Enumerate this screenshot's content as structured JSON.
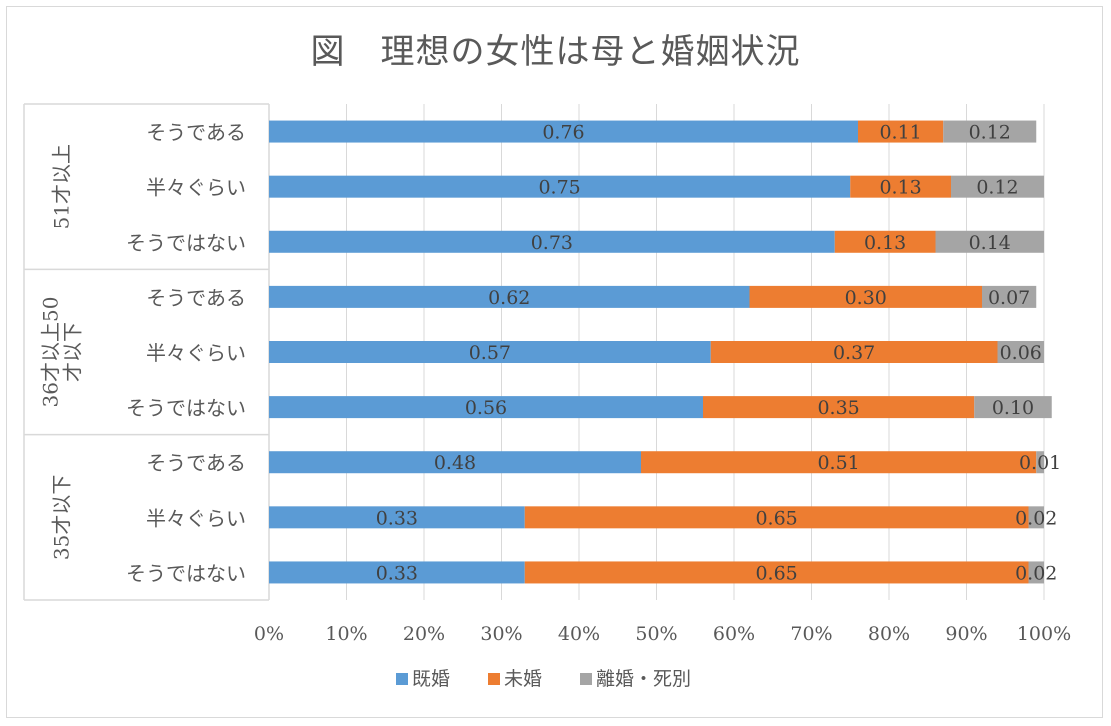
{
  "chart_data": {
    "type": "bar",
    "orientation": "horizontal",
    "stacked": "percent",
    "title": "図　理想の女性は母と婚姻状況",
    "xlim": [
      0,
      1
    ],
    "x_ticks": [
      "0%",
      "10%",
      "20%",
      "30%",
      "40%",
      "50%",
      "60%",
      "70%",
      "80%",
      "90%",
      "100%"
    ],
    "groups": [
      {
        "label": "51才以上",
        "categories": [
          "そうである",
          "半々ぐらい",
          "そうではない"
        ]
      },
      {
        "label": "36才以上50才以下",
        "categories": [
          "そうである",
          "半々ぐらい",
          "そうではない"
        ]
      },
      {
        "label": "35才以下",
        "categories": [
          "そうである",
          "半々ぐらい",
          "そうではない"
        ]
      }
    ],
    "series": [
      {
        "name": "既婚",
        "color": "#5b9bd5",
        "values": [
          0.76,
          0.75,
          0.73,
          0.62,
          0.57,
          0.56,
          0.48,
          0.33,
          0.33
        ]
      },
      {
        "name": "未婚",
        "color": "#ed7d31",
        "values": [
          0.11,
          0.13,
          0.13,
          0.3,
          0.37,
          0.35,
          0.51,
          0.65,
          0.65
        ]
      },
      {
        "name": "離婚・死別",
        "color": "#a5a5a5",
        "values": [
          0.12,
          0.12,
          0.14,
          0.07,
          0.06,
          0.1,
          0.01,
          0.02,
          0.02
        ]
      }
    ],
    "data_labels": [
      [
        "0.76",
        "0.75",
        "0.73",
        "0.62",
        "0.57",
        "0.56",
        "0.48",
        "0.33",
        "0.33"
      ],
      [
        "0.11",
        "0.13",
        "0.13",
        "0.30",
        "0.37",
        "0.35",
        "0.51",
        "0.65",
        "0.65"
      ],
      [
        "0.12",
        "0.12",
        "0.14",
        "0.07",
        "0.06",
        "0.10",
        "0.01",
        "0.02",
        "0.02"
      ]
    ],
    "legend_position": "bottom",
    "grid": true
  }
}
